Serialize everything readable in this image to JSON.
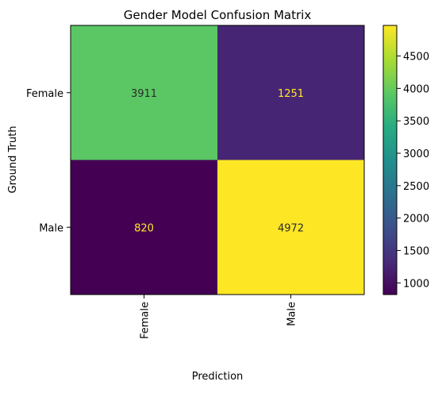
{
  "chart_data": {
    "type": "heatmap",
    "title": "Gender Model Confusion Matrix",
    "xlabel": "Prediction",
    "ylabel": "Ground Truth",
    "x_categories": [
      "Female",
      "Male"
    ],
    "y_categories": [
      "Female",
      "Male"
    ],
    "values": [
      [
        3911,
        1251
      ],
      [
        820,
        4972
      ]
    ],
    "colormap": "viridis",
    "colorbar": {
      "range": [
        820,
        4972
      ],
      "ticks": [
        1000,
        1500,
        2000,
        2500,
        3000,
        3500,
        4000,
        4500
      ]
    },
    "grid": false,
    "legend": "colorbar-right"
  }
}
